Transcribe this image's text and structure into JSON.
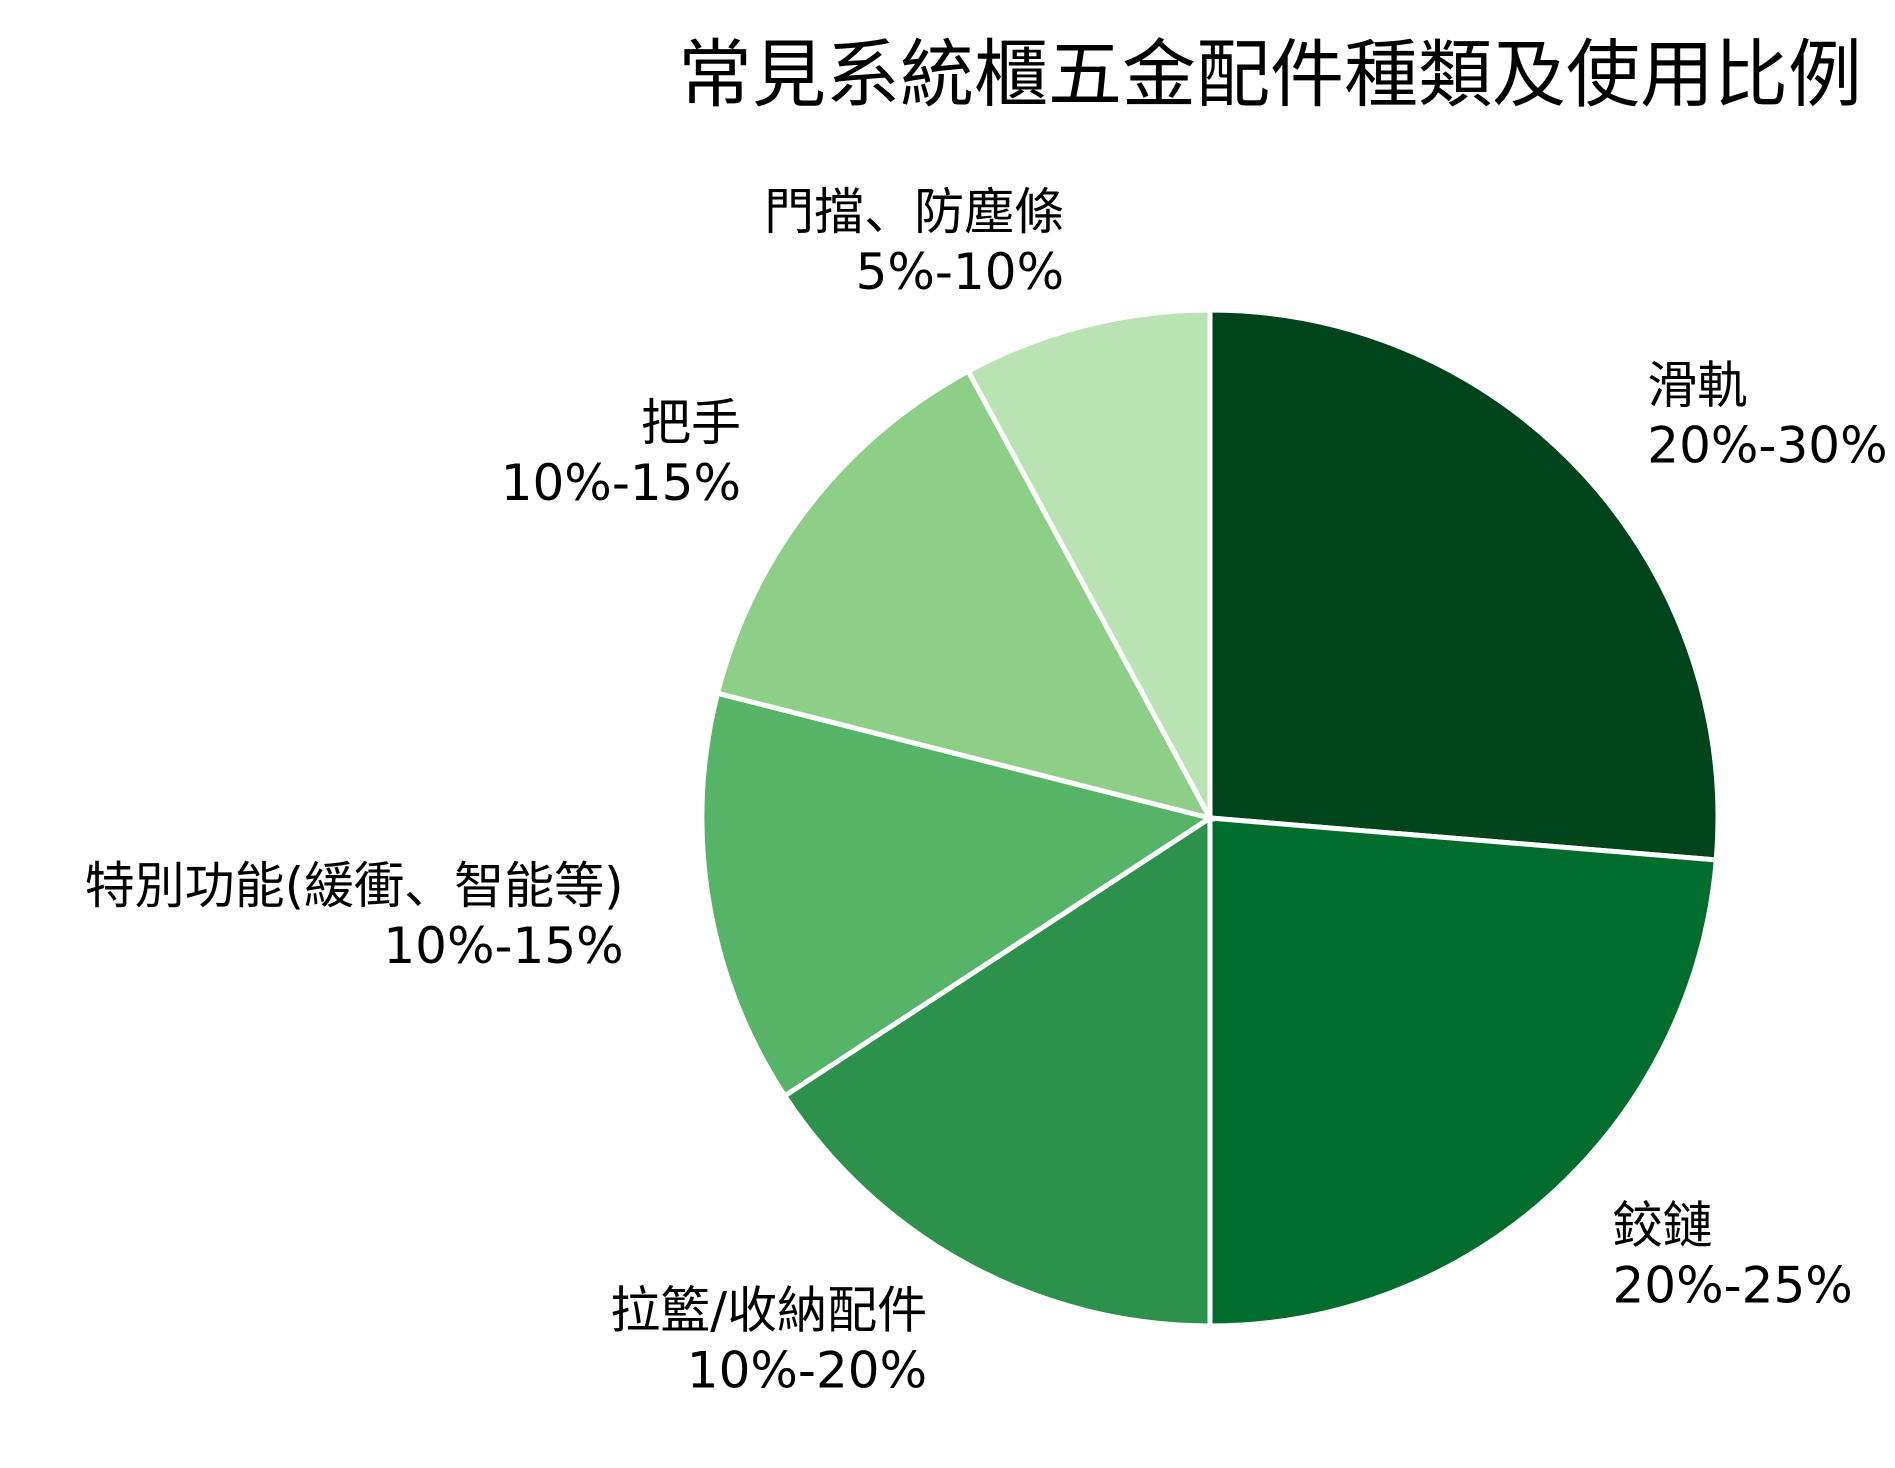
{
  "chart_data": {
    "type": "pie",
    "title": "常見系統櫃五金配件種類及使用比例",
    "start_angle_deg": 90,
    "direction": "clockwise",
    "slices": [
      {
        "name": "滑軌",
        "range_label": "20%-30%",
        "value": 25,
        "color": "#00441b"
      },
      {
        "name": "鉸鏈",
        "range_label": "20%-25%",
        "value": 22.5,
        "color": "#006d2c"
      },
      {
        "name": "拉籃/收納配件",
        "range_label": "10%-20%",
        "value": 15,
        "color": "#2c914b"
      },
      {
        "name": "特別功能(緩衝、智能等)",
        "range_label": "10%-15%",
        "value": 12.5,
        "color": "#56b467"
      },
      {
        "name": "把手",
        "range_label": "10%-15%",
        "value": 12.5,
        "color": "#8ecf87"
      },
      {
        "name": "門擋、防塵條",
        "range_label": "5%-10%",
        "value": 7.5,
        "color": "#b9e3b2"
      }
    ]
  }
}
